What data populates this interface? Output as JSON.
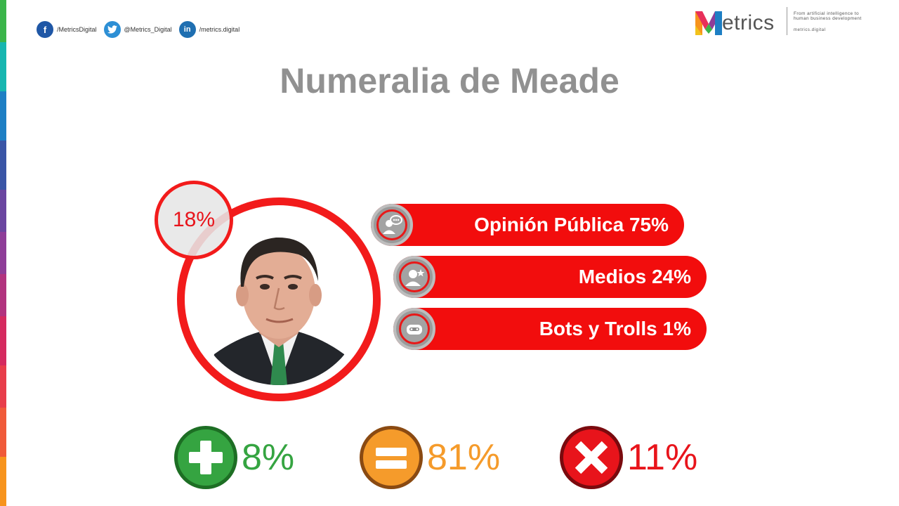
{
  "social": [
    {
      "network": "facebook",
      "icon": "facebook-icon",
      "glyph": "f",
      "handle": "/MetricsDigital"
    },
    {
      "network": "twitter",
      "icon": "twitter-icon",
      "glyph": "",
      "handle": "@Metrics_Digital"
    },
    {
      "network": "linkedin",
      "icon": "linkedin-icon",
      "glyph": "in",
      "handle": "/metrics.digital"
    }
  ],
  "logo": {
    "word": "etrics",
    "tagline": "From artificial intelligence to human business development",
    "url": "metrics.digital"
  },
  "title": "Numeralia de Meade",
  "portrait": {
    "badge": "18%",
    "badge_fraction": 0.18
  },
  "sources": [
    {
      "label": "Opinión Pública 75%",
      "icon": "chat-person-icon",
      "value": 75
    },
    {
      "label": "Medios 24%",
      "icon": "media-person-icon",
      "value": 24
    },
    {
      "label": "Bots y Trolls 1%",
      "icon": "bot-icon",
      "value": 1
    }
  ],
  "sentiment": {
    "positive": {
      "value": "8%",
      "icon": "plus-icon",
      "color": "#35a441"
    },
    "neutral": {
      "value": "81%",
      "icon": "equals-icon",
      "color": "#f59b2b"
    },
    "negative": {
      "value": "11%",
      "icon": "x-icon",
      "color": "#e8141b"
    }
  },
  "colors": {
    "accent_red": "#f20d0d",
    "title_gray": "#919191"
  }
}
